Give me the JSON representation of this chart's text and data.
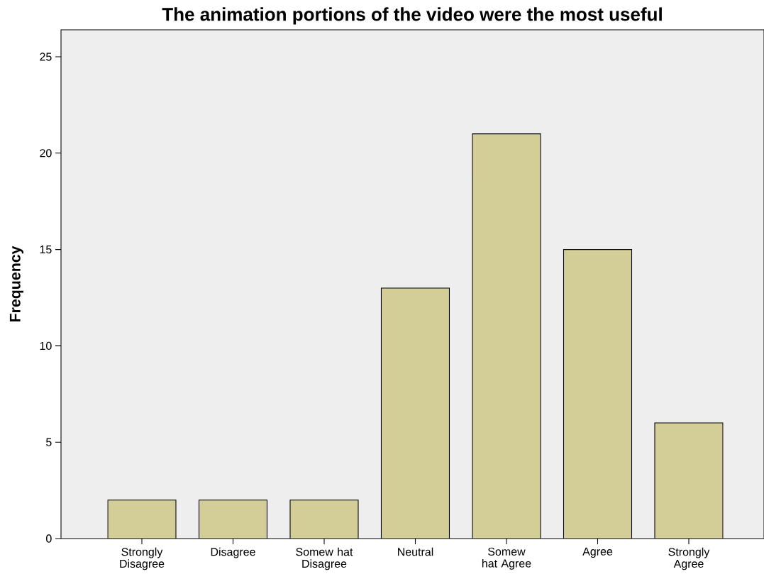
{
  "chart_data": {
    "type": "bar",
    "title": "The animation portions of the video were the most useful",
    "ylabel": "Frequency",
    "categories": [
      "Strongly Disagree",
      "Disagree",
      "Somew hat Disagree",
      "Neutral",
      "Somew hat Agree",
      "Agree",
      "Strongly Agree"
    ],
    "values": [
      2,
      2,
      2,
      13,
      21,
      15,
      6
    ],
    "color": "#d3ce98",
    "ylim": [
      0,
      26.4
    ],
    "yticks": [
      0,
      5,
      10,
      15,
      20,
      25
    ],
    "grid": false
  }
}
